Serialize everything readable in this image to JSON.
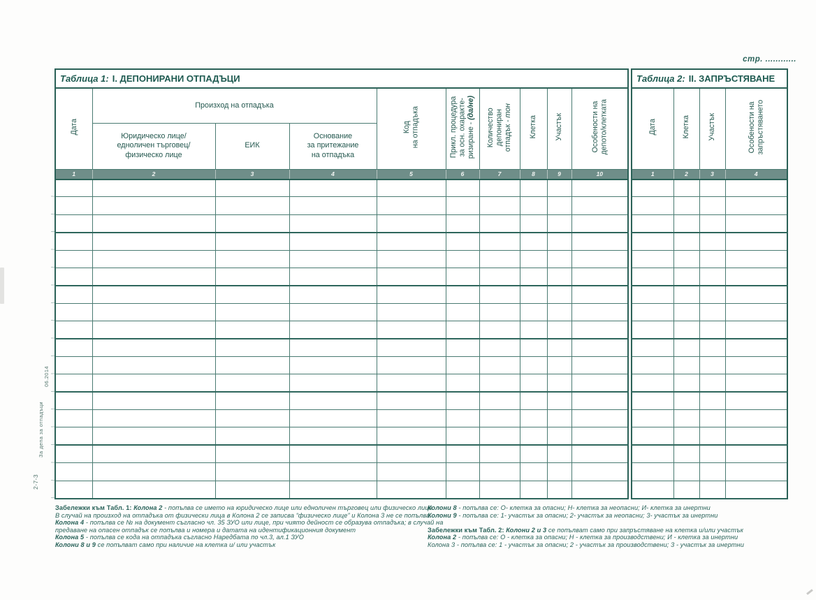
{
  "page": {
    "number_label": "стр. ............",
    "margin": {
      "date_code": "06.2014",
      "register_label": "За депа за отпадъци",
      "form_code": "2-7-3"
    }
  },
  "colors": {
    "ink": "#1d5a50",
    "grid_light": "#4a7b72",
    "grid_heavy": "#2b6157",
    "number_row_bg": "#6f8e89",
    "number_row_text": "#f3f6f4"
  },
  "table1": {
    "title_prefix": "Таблица 1:",
    "title": "I. ДЕПОНИРАНИ ОТПАДЪЦИ",
    "group_header": "Произход на отпадъка",
    "headers": {
      "c1": "Дата",
      "c2": "Юридическо лице/\nедноличен търговец/\nфизическо лице",
      "c3": "ЕИК",
      "c4": "Основание\nза притежание\nна отпадъка",
      "c5": "Код\nна отпадъка",
      "c6_main": "Прикл. процедура\nза осн. охаракте-\nризиране - ",
      "c6_em": "(да/не)",
      "c7_main": "Количество\nдепониран\nотпадък - ",
      "c7_em": "тон",
      "c8": "Клетка",
      "c9": "Участък",
      "c10": "Особености на\nдепото/клетката"
    },
    "column_numbers": [
      "1",
      "2",
      "3",
      "4",
      "5",
      "6",
      "7",
      "8",
      "9",
      "10"
    ],
    "body_rows": 18,
    "thick_every": 3
  },
  "table2": {
    "title_prefix": "Таблица 2:",
    "title": "II. ЗАПРЪСТЯВАНЕ",
    "headers": {
      "c1": "Дата",
      "c2": "Клетка",
      "c3": "Участък",
      "c4": "Особености на\nзапръстяването"
    },
    "column_numbers": [
      "1",
      "2",
      "3",
      "4"
    ],
    "body_rows": 18,
    "thick_every": 3
  },
  "notes_left": {
    "lines": [
      {
        "b": "Забележки към Табл. 1: ",
        "bi": "Колона 2",
        "t": " - попълва се името на юридическо лице или едноличен търговец или физическо лице."
      },
      {
        "t": "В случай на произход на отпадъка от физически лица в Колона 2 се записва “физическо лице” и Колона 3 не се попълва"
      },
      {
        "bi": "Колона 4",
        "t": " - попълва се № на документ съгласно чл. 35 ЗУО или лице, при чиято дейност се образува отпадъка; в случай на"
      },
      {
        "t": "предаване на опасен отпадък се попълва и номера и датата на идентификационния документ"
      },
      {
        "bi": "Колона 5",
        "t": " - попълва се кода на отпадъка съгласно Наредбата по чл.3, ал.1 ЗУО"
      },
      {
        "bi": "Колони 8 и 9",
        "t": " се попълват само при наличие на клетка и/ или участък"
      }
    ]
  },
  "notes_right": {
    "lines": [
      {
        "bi": "Колони 8",
        "t": " - попълва се: О- клетка за опасни; Н- клетка за неопасни; И- клетка за инертни"
      },
      {
        "bi": "Колони 9",
        "t": " - попълва се: 1- участък за опасни; 2- участък за неопасни; 3- участък за инертни"
      },
      {
        "spacer": true
      },
      {
        "b": "Забележки към Табл. 2: ",
        "bi": "Колони 2 и 3",
        "t": " се попълват само при запръстяване на клетка и/или участък"
      },
      {
        "bi": "Колона 2",
        "t": " - попълва се: О - клетка за опасни; Н - клетка за производствени; И - клетка за инертни"
      },
      {
        "t": "Колона 3 - попълва се: 1 - участък за опасни; 2 - участък за производствени; 3 - участък за инертни"
      }
    ]
  }
}
